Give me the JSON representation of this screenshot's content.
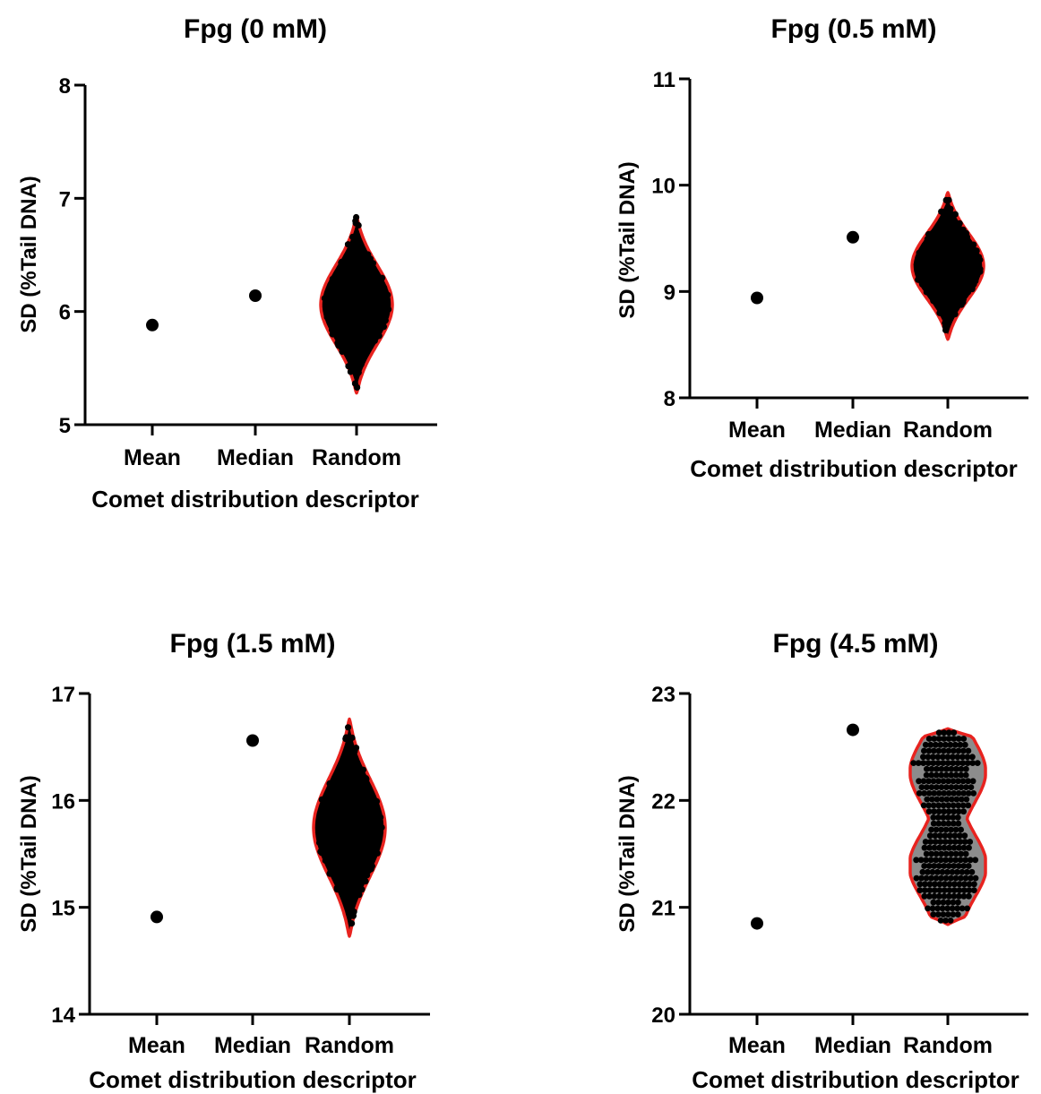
{
  "chart_data": [
    {
      "type": "scatter",
      "title": "Fpg (0 mM)",
      "xlabel": "Comet distribution descriptor",
      "ylabel": "SD (%Tail DNA)",
      "categories": [
        "Mean",
        "Median",
        "Random"
      ],
      "ylim": [
        5,
        8
      ],
      "yticks": [
        5,
        6,
        7,
        8
      ],
      "points": [
        {
          "category": "Mean",
          "value": 5.88
        },
        {
          "category": "Median",
          "value": 6.14
        }
      ],
      "violin": {
        "category": "Random",
        "min": 5.28,
        "max": 6.84,
        "median": 6.06,
        "distribution": "unimodal",
        "fill": "#000000"
      },
      "grid": false,
      "colors": {
        "violin_outline": "#e8231f",
        "points": "#000000"
      }
    },
    {
      "type": "scatter",
      "title": "Fpg (0.5 mM)",
      "xlabel": "Comet distribution descriptor",
      "ylabel": "SD (%Tail DNA)",
      "categories": [
        "Mean",
        "Median",
        "Random"
      ],
      "ylim": [
        8,
        11
      ],
      "yticks": [
        8,
        9,
        10,
        11
      ],
      "points": [
        {
          "category": "Mean",
          "value": 8.94
        },
        {
          "category": "Median",
          "value": 9.51
        }
      ],
      "violin": {
        "category": "Random",
        "min": 8.55,
        "max": 9.93,
        "median": 9.3,
        "distribution": "unimodal",
        "fill": "#000000"
      },
      "grid": false,
      "colors": {
        "violin_outline": "#e8231f",
        "points": "#000000"
      }
    },
    {
      "type": "scatter",
      "title": "Fpg (1.5 mM)",
      "xlabel": "Comet distribution descriptor",
      "ylabel": "SD (%Tail DNA)",
      "categories": [
        "Mean",
        "Median",
        "Random"
      ],
      "ylim": [
        14,
        17
      ],
      "yticks": [
        14,
        15,
        16,
        17
      ],
      "points": [
        {
          "category": "Mean",
          "value": 14.91
        },
        {
          "category": "Median",
          "value": 16.56
        }
      ],
      "violin": {
        "category": "Random",
        "min": 14.73,
        "max": 16.76,
        "median": 15.8,
        "distribution": "unimodal",
        "fill": "#000000"
      },
      "grid": false,
      "colors": {
        "violin_outline": "#e8231f",
        "points": "#000000"
      }
    },
    {
      "type": "scatter",
      "title": "Fpg (4.5 mM)",
      "xlabel": "Comet distribution descriptor",
      "ylabel": "SD (%Tail DNA)",
      "categories": [
        "Mean",
        "Median",
        "Random"
      ],
      "ylim": [
        20,
        23
      ],
      "yticks": [
        20,
        21,
        22,
        23
      ],
      "points": [
        {
          "category": "Mean",
          "value": 20.85
        },
        {
          "category": "Median",
          "value": 22.66
        }
      ],
      "violin": {
        "category": "Random",
        "min": 20.84,
        "max": 22.67,
        "median": 21.7,
        "distribution": "bimodal",
        "fill": "#8c8c8c"
      },
      "grid": false,
      "colors": {
        "violin_outline": "#e8231f",
        "points": "#000000"
      }
    }
  ]
}
